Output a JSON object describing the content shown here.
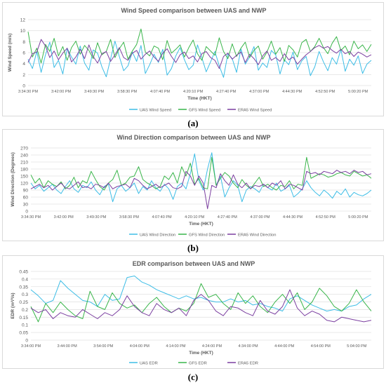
{
  "colors": {
    "uas": "#3dbde6",
    "gfs": "#39b54a",
    "era5": "#7b3fa0",
    "grid": "#e3e3e3",
    "text": "#595959"
  },
  "charts": [
    {
      "caption_label": "(a)",
      "chart_data": {
        "type": "line",
        "title": "Wind Speed comparison between UAS and NWP",
        "xlabel": "Time (HKT)",
        "ylabel": "Wind Speed (m/s)",
        "ylim": [
          0,
          12
        ],
        "yticks": [
          0,
          2,
          4,
          6,
          8,
          10,
          12
        ],
        "xtick_labels": [
          "3:34:30 PM",
          "3:42:00 PM",
          "3:49:30 PM",
          "3:58:30 PM",
          "4:07:40 PM",
          "4:20:10 PM",
          "4:27:40 PM",
          "4:37:00 PM",
          "4:44:30 PM",
          "4:52:50 PM",
          "5:00:20 PM"
        ],
        "legend_position": "bottom",
        "series": [
          {
            "name": "UAS Wind Speed",
            "key": "uas",
            "values": [
              4.8,
              3.1,
              6.2,
              2.4,
              5.6,
              7.9,
              3.3,
              4.6,
              2.1,
              6.8,
              5.2,
              3.9,
              7.2,
              4.1,
              2.8,
              6.5,
              5.9,
              3.4,
              1.6,
              4.9,
              8.1,
              5.3,
              2.7,
              3.6,
              6.1,
              4.4,
              7.3,
              2.2,
              3.8,
              5.7,
              4.2,
              6.6,
              1.9,
              3.1,
              5.4,
              6.9,
              4.7,
              2.9,
              3.7,
              7.4,
              5.1,
              2.5,
              4.3,
              6.2,
              3.6,
              1.5,
              5.8,
              4.9,
              2.4,
              6.7,
              3.9,
              5.2,
              7.1,
              2.8,
              4.1,
              3.3,
              6.4,
              5.6,
              2.1,
              4.7,
              3.8,
              6.1,
              2.9,
              4.5,
              5.3,
              1.8,
              3.4,
              6.2,
              4.3,
              2.7,
              5.1,
              3.9,
              6.6,
              2.6,
              4.8,
              3.7,
              5.4,
              2.2,
              3.9,
              4.6
            ]
          },
          {
            "name": "GFS Wind Speed",
            "key": "gfs",
            "values": [
              9.8,
              5.2,
              6.8,
              4.1,
              7.5,
              6.2,
              8.6,
              5.4,
              7.1,
              4.6,
              6.9,
              8.1,
              5.7,
              7.3,
              6.4,
              4.9,
              7.8,
              5.6,
              6.2,
              8.4,
              5.1,
              6.7,
              7.9,
              4.8,
              6.3,
              7.5,
              10.3,
              6.1,
              5.4,
              7.2,
              6.8,
              4.7,
              8.2,
              5.9,
              6.6,
              7.4,
              5.2,
              6.9,
              8.3,
              5.8,
              4.6,
              7.1,
              6.3,
              5.5,
              8.7,
              6.2,
              4.9,
              7.6,
              5.3,
              6.8,
              7.9,
              5.1,
              6.4,
              7.2,
              4.8,
              6.1,
              8.1,
              5.7,
              6.9,
              4.4,
              7.3,
              6.5,
              5.2,
              7.8,
              8.4,
              6.2,
              7.1,
              8.6,
              6.9,
              5.8,
              7.7,
              8.9,
              6.4,
              7.2,
              5.6,
              8.1,
              6.7,
              7.4,
              6.2,
              7.5
            ]
          },
          {
            "name": "ERA5 Wind Speed",
            "key": "era5",
            "values": [
              4.2,
              5.8,
              6.1,
              8.4,
              7.2,
              5.1,
              6.3,
              4.7,
              5.9,
              6.8,
              4.3,
              5.2,
              6.6,
              4.9,
              7.4,
              5.3,
              4.1,
              5.8,
              6.2,
              4.4,
              5.6,
              6.9,
              5.1,
              4.6,
              5.9,
              6.4,
              4.8,
              5.7,
              6.3,
              5.2,
              4.4,
              5.9,
              6.7,
              5.3,
              4.2,
              5.6,
              6.1,
              4.9,
              5.4,
              4.3,
              5.8,
              6.2,
              5.1,
              4.6,
              3.1,
              5.3,
              5.9,
              4.8,
              5.5,
              6.1,
              4.2,
              5.7,
              4.9,
              3.8,
              5.4,
              6.3,
              4.6,
              5.1,
              4.4,
              5.8,
              4.7,
              5.2,
              3.9,
              4.8,
              5.6,
              6.2,
              6.9,
              7.3,
              6.8,
              7.1,
              6.4,
              5.9,
              6.6,
              5.8,
              6.2,
              5.3,
              6.1,
              5.7,
              5.2,
              5.6
            ]
          }
        ]
      }
    },
    {
      "caption_label": "(b)",
      "chart_data": {
        "type": "line",
        "title": "Wind Direction comparison between UAS and NWP",
        "xlabel": "Time (HKT)",
        "ylabel": "Wind Direction (Degrees)",
        "ylim": [
          0,
          270
        ],
        "yticks": [
          0,
          30,
          60,
          90,
          120,
          150,
          180,
          210,
          240,
          270
        ],
        "xtick_labels": [
          "3:34:30 PM",
          "3:42:00 PM",
          "3:49:30 PM",
          "3:58:30 PM",
          "4:07:40 PM",
          "4:20:10 PM",
          "4:27:40 PM",
          "4:37:00 PM",
          "4:44:30 PM",
          "4:52:50 PM",
          "5:00:20 PM"
        ],
        "legend_position": "bottom",
        "series": [
          {
            "name": "UAS Wind Direction",
            "key": "uas",
            "values": [
              120,
              95,
              110,
              85,
              100,
              115,
              90,
              75,
              105,
              130,
              95,
              80,
              110,
              100,
              125,
              90,
              70,
              105,
              115,
              40,
              95,
              110,
              85,
              100,
              120,
              75,
              105,
              90,
              130,
              100,
              85,
              115,
              95,
              50,
              105,
              120,
              95,
              160,
              245,
              130,
              90,
              180,
              250,
              110,
              150,
              60,
              100,
              130,
              110,
              40,
              90,
              105,
              95,
              80,
              115,
              100,
              90,
              120,
              85,
              95,
              110,
              60,
              75,
              95,
              130,
              100,
              80,
              65,
              90,
              75,
              55,
              85,
              70,
              95,
              60,
              80,
              70,
              65,
              75,
              90
            ]
          },
          {
            "name": "GFS Wind Direction",
            "key": "gfs",
            "values": [
              155,
              120,
              140,
              100,
              130,
              115,
              105,
              125,
              95,
              110,
              145,
              100,
              130,
              120,
              170,
              135,
              105,
              90,
              120,
              135,
              175,
              110,
              120,
              145,
              150,
              190,
              135,
              120,
              110,
              95,
              105,
              150,
              135,
              165,
              120,
              190,
              150,
              205,
              115,
              140,
              100,
              95,
              230,
              110,
              140,
              165,
              150,
              120,
              100,
              135,
              110,
              95,
              120,
              145,
              105,
              115,
              100,
              90,
              110,
              105,
              130,
              95,
              115,
              110,
              230,
              140,
              150,
              160,
              155,
              145,
              150,
              160,
              165,
              155,
              150,
              170,
              160,
              150,
              155,
              140
            ]
          },
          {
            "name": "ERA5 Wind Direction",
            "key": "era5",
            "values": [
              95,
              105,
              115,
              100,
              110,
              90,
              105,
              120,
              100,
              95,
              110,
              125,
              100,
              105,
              95,
              115,
              110,
              100,
              120,
              95,
              105,
              110,
              115,
              100,
              140,
              130,
              110,
              95,
              105,
              115,
              100,
              110,
              120,
              100,
              95,
              105,
              170,
              150,
              110,
              150,
              120,
              10,
              110,
              100,
              160,
              130,
              110,
              155,
              115,
              100,
              120,
              95,
              110,
              105,
              115,
              100,
              120,
              110,
              130,
              95,
              115,
              110,
              100,
              90,
              170,
              160,
              165,
              155,
              170,
              165,
              160,
              175,
              165,
              170,
              160,
              175,
              165,
              170,
              155,
              160
            ]
          }
        ]
      }
    },
    {
      "caption_label": "(c)",
      "chart_data": {
        "type": "line",
        "title": "EDR comparison between UAS and NWP",
        "xlabel": "Time (HKT)",
        "ylabel": "EDR (m²/³/s)",
        "ylim": [
          0,
          0.45
        ],
        "yticks": [
          0,
          0.05,
          0.1,
          0.15,
          0.2,
          0.25,
          0.3,
          0.35,
          0.4,
          0.45
        ],
        "xtick_labels": [
          "3:34:00 PM",
          "3:44:00 PM",
          "3:54:00 PM",
          "4:04:00 PM",
          "4:14:00 PM",
          "4:24:00 PM",
          "4:34:00 PM",
          "4:44:00 PM",
          "4:54:00 PM",
          "5:04:00 PM"
        ],
        "legend_position": "bottom",
        "series": [
          {
            "name": "UAS EDR",
            "key": "uas",
            "values": [
              0.33,
              0.29,
              0.24,
              0.26,
              0.39,
              0.34,
              0.3,
              0.26,
              0.25,
              0.22,
              0.3,
              0.26,
              0.27,
              0.41,
              0.42,
              0.38,
              0.36,
              0.33,
              0.31,
              0.29,
              0.27,
              0.29,
              0.27,
              0.28,
              0.26,
              0.25,
              0.25,
              0.27,
              0.25,
              0.26,
              0.23,
              0.24,
              0.22,
              0.21,
              0.19,
              0.27,
              0.29,
              0.26,
              0.23,
              0.21,
              0.19,
              0.2,
              0.19,
              0.22,
              0.23,
              0.27,
              0.3
            ]
          },
          {
            "name": "GFS EDR",
            "key": "gfs",
            "values": [
              0.22,
              0.12,
              0.24,
              0.18,
              0.25,
              0.2,
              0.16,
              0.14,
              0.32,
              0.22,
              0.2,
              0.31,
              0.24,
              0.21,
              0.23,
              0.18,
              0.24,
              0.28,
              0.22,
              0.18,
              0.21,
              0.19,
              0.24,
              0.37,
              0.28,
              0.3,
              0.24,
              0.2,
              0.31,
              0.24,
              0.29,
              0.22,
              0.18,
              0.25,
              0.3,
              0.24,
              0.31,
              0.2,
              0.25,
              0.34,
              0.29,
              0.22,
              0.19,
              0.24,
              0.33,
              0.25,
              0.19
            ]
          },
          {
            "name": "ERA5 EDR",
            "key": "era5",
            "values": [
              0.21,
              0.18,
              0.2,
              0.14,
              0.18,
              0.16,
              0.15,
              0.2,
              0.17,
              0.14,
              0.18,
              0.16,
              0.2,
              0.29,
              0.22,
              0.18,
              0.16,
              0.24,
              0.2,
              0.18,
              0.21,
              0.16,
              0.26,
              0.3,
              0.26,
              0.19,
              0.16,
              0.22,
              0.21,
              0.18,
              0.16,
              0.26,
              0.19,
              0.17,
              0.22,
              0.33,
              0.21,
              0.16,
              0.19,
              0.17,
              0.13,
              0.12,
              0.15,
              0.14,
              0.13,
              0.12,
              0.13
            ]
          }
        ]
      }
    }
  ]
}
